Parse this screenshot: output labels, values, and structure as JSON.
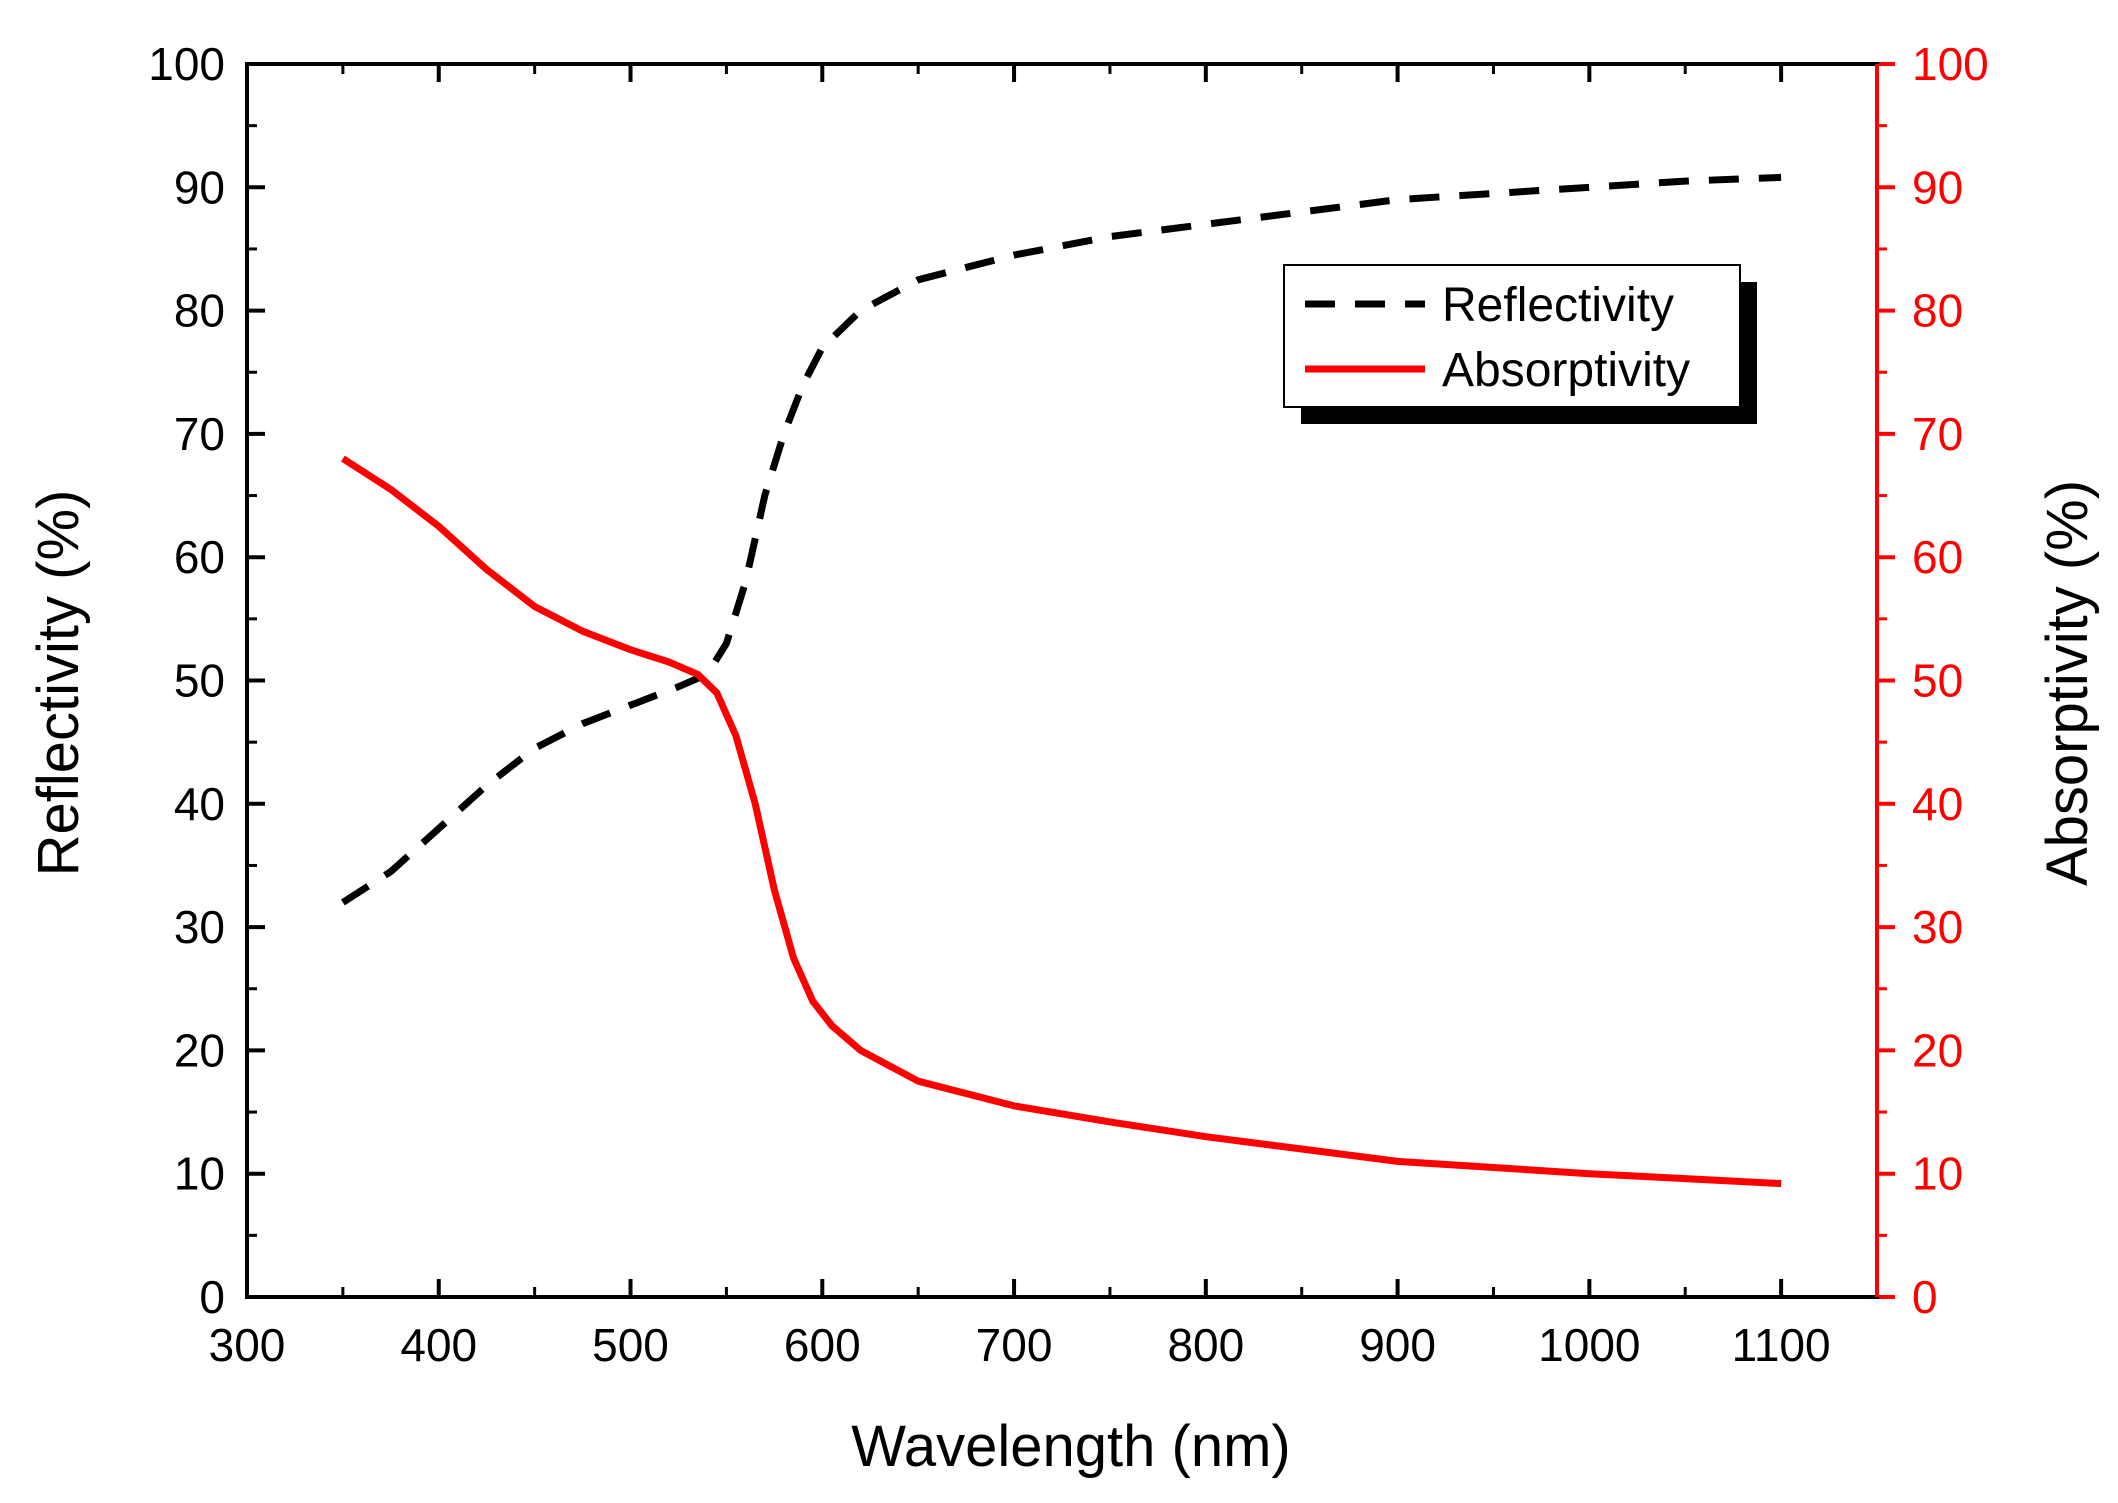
{
  "chart_data": {
    "type": "line",
    "title": "",
    "xlabel": "Wavelength (nm)",
    "ylabel_left": "Reflectivity (%)",
    "ylabel_right": "Absorptivity (%)",
    "xlim": [
      300,
      1150
    ],
    "ylim": [
      0,
      100
    ],
    "x_ticks": [
      300,
      400,
      500,
      600,
      700,
      800,
      900,
      1000,
      1100
    ],
    "y_ticks": [
      0,
      10,
      20,
      30,
      40,
      50,
      60,
      70,
      80,
      90,
      100
    ],
    "grid": false,
    "legend_position": "top-right",
    "colors": {
      "axis": "#000000",
      "right_axis": "#ff0000"
    },
    "series": [
      {
        "name": "Reflectivity",
        "axis": "left",
        "color": "#000000",
        "dash": "dashed",
        "x": [
          350,
          375,
          400,
          425,
          450,
          475,
          500,
          525,
          540,
          550,
          560,
          570,
          580,
          590,
          600,
          620,
          650,
          700,
          750,
          800,
          850,
          900,
          950,
          1000,
          1050,
          1100
        ],
        "y": [
          32,
          34.5,
          38,
          41.5,
          44.5,
          46.5,
          48,
          49.5,
          50.5,
          53,
          58,
          65,
          70,
          74,
          77,
          80,
          82.5,
          84.5,
          86,
          87,
          88,
          89,
          89.5,
          90,
          90.5,
          90.8
        ]
      },
      {
        "name": "Absorptivity",
        "axis": "right",
        "color": "#ff0000",
        "dash": "solid",
        "x": [
          350,
          375,
          400,
          425,
          450,
          475,
          500,
          520,
          535,
          545,
          555,
          565,
          575,
          585,
          595,
          605,
          620,
          650,
          700,
          750,
          800,
          850,
          900,
          950,
          1000,
          1050,
          1100
        ],
        "y": [
          68,
          65.5,
          62.5,
          59,
          56,
          54,
          52.5,
          51.5,
          50.5,
          49,
          45.5,
          40,
          33,
          27.5,
          24,
          22,
          20,
          17.5,
          15.5,
          14.2,
          13,
          12,
          11,
          10.5,
          10,
          9.6,
          9.2
        ]
      }
    ]
  }
}
